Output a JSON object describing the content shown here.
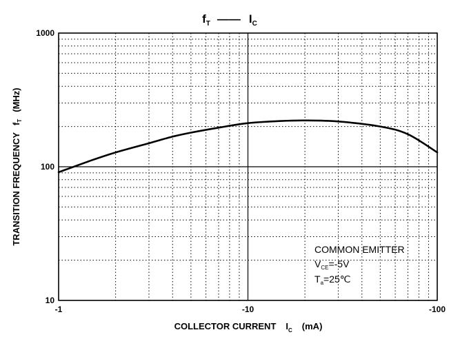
{
  "chart_data": {
    "type": "line",
    "title": {
      "main_left": "f",
      "main_left_sub": "T",
      "dash": "——",
      "main_right": "I",
      "main_right_sub": "C"
    },
    "xlabel": {
      "text": "COLLECTOR CURRENT",
      "symbol": "I",
      "symbol_sub": "C",
      "unit": "(mA)"
    },
    "ylabel": {
      "text": "TRANSITION FREQUENCY",
      "symbol": "f",
      "symbol_sub": "T",
      "unit": "(MHz)"
    },
    "x_scale": "log",
    "y_scale": "log",
    "xlim": [
      -1,
      -100
    ],
    "ylim": [
      10,
      1000
    ],
    "x_ticks": [
      {
        "value": -1,
        "label": "-1"
      },
      {
        "value": -10,
        "label": "-10"
      },
      {
        "value": -100,
        "label": "-100"
      }
    ],
    "y_ticks": [
      {
        "value": 10,
        "label": "10"
      },
      {
        "value": 100,
        "label": "100"
      },
      {
        "value": 1000,
        "label": "1000"
      }
    ],
    "grid": true,
    "series": [
      {
        "x": [
          -1,
          -1.5,
          -2,
          -3,
          -4,
          -5,
          -7,
          -10,
          -15,
          -20,
          -30,
          -50,
          -70,
          -100
        ],
        "y": [
          91,
          112,
          128,
          150,
          168,
          180,
          196,
          212,
          220,
          222,
          218,
          200,
          175,
          128
        ]
      }
    ],
    "annotation": {
      "line1": "COMMON EMITTER",
      "line2_main": "V",
      "line2_sub": "CE",
      "line2_rest": "=-5V",
      "line3_main": "T",
      "line3_sub": "a",
      "line3_rest": "=25℃"
    }
  }
}
